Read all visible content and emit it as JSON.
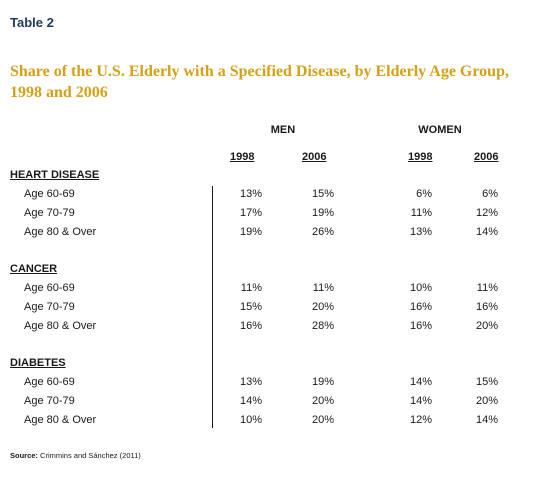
{
  "table_label": "Table 2",
  "title": "Share of the U.S. Elderly with a Specified Disease, by Elderly Age Group, 1998 and 2006",
  "groups": [
    "MEN",
    "WOMEN"
  ],
  "years": [
    "1998",
    "2006",
    "1998",
    "2006"
  ],
  "sections": [
    {
      "name": "HEART DISEASE",
      "rows": [
        {
          "label": "Age 60-69",
          "values": [
            "13%",
            "15%",
            "6%",
            "6%"
          ]
        },
        {
          "label": "Age 70-79",
          "values": [
            "17%",
            "19%",
            "11%",
            "12%"
          ]
        },
        {
          "label": "Age 80 & Over",
          "values": [
            "19%",
            "26%",
            "13%",
            "14%"
          ]
        }
      ]
    },
    {
      "name": "CANCER",
      "rows": [
        {
          "label": "Age 60-69",
          "values": [
            "11%",
            "11%",
            "10%",
            "11%"
          ]
        },
        {
          "label": "Age 70-79",
          "values": [
            "15%",
            "20%",
            "16%",
            "16%"
          ]
        },
        {
          "label": "Age 80 & Over",
          "values": [
            "16%",
            "28%",
            "16%",
            "20%"
          ]
        }
      ]
    },
    {
      "name": "DIABETES",
      "rows": [
        {
          "label": "Age 60-69",
          "values": [
            "13%",
            "19%",
            "14%",
            "15%"
          ]
        },
        {
          "label": "Age 70-79",
          "values": [
            "14%",
            "20%",
            "14%",
            "20%"
          ]
        },
        {
          "label": "Age 80 & Over",
          "values": [
            "10%",
            "20%",
            "12%",
            "14%"
          ]
        }
      ]
    }
  ],
  "source": {
    "label": "Source:",
    "text": "Crimmins and Sánchez (2011)"
  },
  "colors": {
    "table_label": "#1f3a5c",
    "title": "#d4a017",
    "text": "#1a1a1a"
  }
}
